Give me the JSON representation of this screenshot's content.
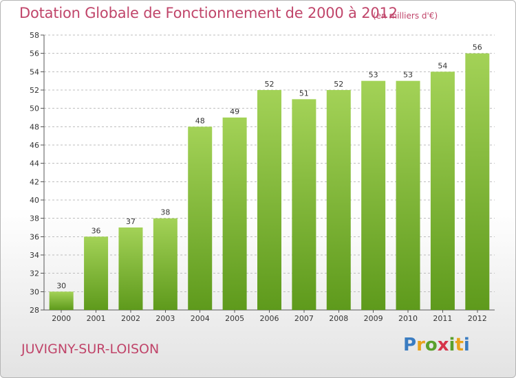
{
  "header": {
    "title": "Dotation Globale de Fonctionnement de 2000 à 2012",
    "subtitle": "(en milliers d'€)"
  },
  "footer": {
    "commune": "JUVIGNY-SUR-LOISON",
    "logo_text": "Proxiti",
    "logo_letters": [
      "P",
      "r",
      "o",
      "x",
      "i",
      "t",
      "i"
    ],
    "logo_colors": [
      "#3a7cc1",
      "#e8a21a",
      "#5aa02c",
      "#d6344a",
      "#5aa02c",
      "#e8a21a",
      "#3a7cc1"
    ]
  },
  "colors": {
    "title": "#c0456a",
    "bar_top": "#a3d257",
    "bar_bottom": "#5e9a1c",
    "grid": "#bdbdbd",
    "axis_text": "#333333"
  },
  "chart_data": {
    "type": "bar",
    "title": "Dotation Globale de Fonctionnement de 2000 à 2012",
    "subtitle": "(en milliers d'€)",
    "categories": [
      "2000",
      "2001",
      "2002",
      "2003",
      "2004",
      "2005",
      "2006",
      "2007",
      "2008",
      "2009",
      "2010",
      "2011",
      "2012"
    ],
    "values": [
      30,
      36,
      37,
      38,
      48,
      49,
      52,
      51,
      52,
      53,
      53,
      54,
      56
    ],
    "ylim": [
      28,
      58
    ],
    "yticks": [
      28,
      30,
      32,
      34,
      36,
      38,
      40,
      42,
      44,
      46,
      48,
      50,
      52,
      54,
      56,
      58
    ],
    "grid": true,
    "xlabel": "",
    "ylabel": ""
  }
}
